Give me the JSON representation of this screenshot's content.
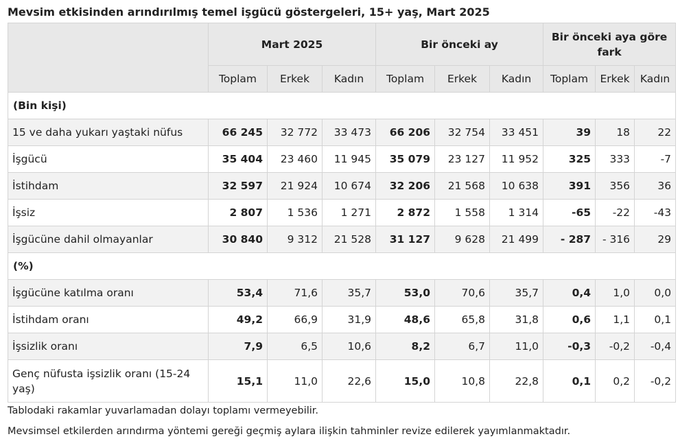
{
  "title": "Mevsim etkisinden arındırılmış temel işgücü göstergeleri, 15+ yaş, Mart 2025",
  "groups": [
    "Mart 2025",
    "Bir önceki ay",
    "Bir önceki aya göre fark"
  ],
  "subheaders": [
    "Toplam",
    "Erkek",
    "Kadın",
    "Toplam",
    "Erkek",
    "Kadın",
    "Toplam",
    "Erkek",
    "Kadın"
  ],
  "section1": "(Bin kişi)",
  "section2": "(%)",
  "rows": [
    {
      "label": "15 ve daha yukarı yaştaki nüfus",
      "values": [
        "66 245",
        "32 772",
        "33 473",
        "66 206",
        "32 754",
        "33 451",
        "39",
        "18",
        "22"
      ]
    },
    {
      "label": "İşgücü",
      "values": [
        "35 404",
        "23 460",
        "11 945",
        "35 079",
        "23 127",
        "11 952",
        "325",
        "333",
        "-7"
      ]
    },
    {
      "label": "İstihdam",
      "values": [
        "32 597",
        "21 924",
        "10 674",
        "32 206",
        "21 568",
        "10 638",
        "391",
        "356",
        "36"
      ]
    },
    {
      "label": "İşsiz",
      "values": [
        "2 807",
        "1 536",
        "1 271",
        "2 872",
        "1 558",
        "1 314",
        "-65",
        "-22",
        "-43"
      ]
    },
    {
      "label": "İşgücüne dahil olmayanlar",
      "values": [
        "30 840",
        "9 312",
        "21 528",
        "31 127",
        "9 628",
        "21 499",
        "- 287",
        "- 316",
        "29"
      ]
    },
    {
      "label": "İşgücüne katılma oranı",
      "values": [
        "53,4",
        "71,6",
        "35,7",
        "53,0",
        "70,6",
        "35,7",
        "0,4",
        "1,0",
        "0,0"
      ]
    },
    {
      "label": "İstihdam oranı",
      "values": [
        "49,2",
        "66,9",
        "31,9",
        "48,6",
        "65,8",
        "31,8",
        "0,6",
        "1,1",
        "0,1"
      ]
    },
    {
      "label": "İşsizlik oranı",
      "values": [
        "7,9",
        "6,5",
        "10,6",
        "8,2",
        "6,7",
        "11,0",
        "-0,3",
        "-0,2",
        "-0,4"
      ]
    },
    {
      "label": "Genç nüfusta işsizlik oranı (15-24 yaş)",
      "values": [
        "15,1",
        "11,0",
        "22,6",
        "15,0",
        "10,8",
        "22,8",
        "0,1",
        "0,2",
        "-0,2"
      ]
    }
  ],
  "notes": [
    "Tablodaki rakamlar yuvarlamadan dolayı toplamı vermeyebilir.",
    "Mevsimsel etkilerden arındırma yöntemi gereği geçmiş aylara ilişkin tahminler revize edilerek yayımlanmaktadır."
  ]
}
